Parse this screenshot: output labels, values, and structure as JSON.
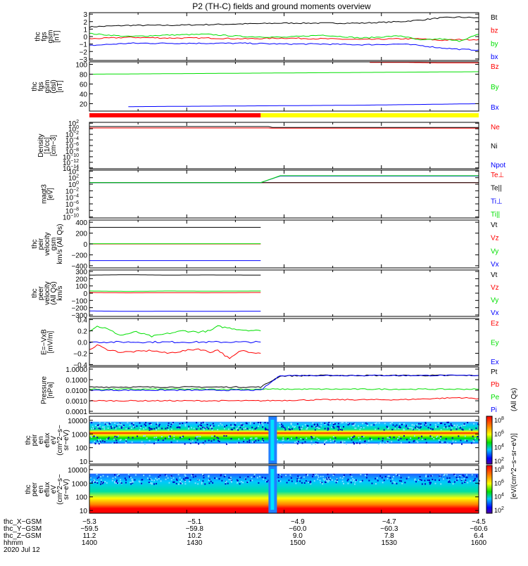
{
  "title": "P2 (TH-C) fields and ground moments overview",
  "colors": {
    "black": "#000000",
    "red": "#ff0000",
    "green": "#00e000",
    "blue": "#0000ff",
    "yellow": "#ffff00",
    "axis": "#000000"
  },
  "chart_data": [
    {
      "id": "fgs-gsm",
      "type": "line",
      "ylabel": [
        "thc",
        "fgs",
        "gsm",
        "[nT]"
      ],
      "yticks": [
        "3",
        "2",
        "1",
        "0",
        "−1",
        "−2",
        "−3"
      ],
      "ylim": [
        -3.2,
        3.2
      ],
      "series": [
        {
          "name": "Bt",
          "color": "black",
          "values": [
            1.3,
            1.5,
            1.5,
            1.6,
            1.7,
            1.8,
            1.8,
            1.8,
            2.0,
            2.2,
            2.5,
            2.6,
            2.5
          ],
          "t": [
            0,
            0.1,
            0.2,
            0.3,
            0.4,
            0.5,
            0.6,
            0.7,
            0.8,
            0.85,
            0.9,
            0.95,
            1
          ]
        },
        {
          "name": "bz",
          "color": "red",
          "values": [
            -0.3,
            -0.1,
            -0.2,
            -0.2,
            -0.3,
            -0.2,
            -0.3,
            -0.4,
            -0.3,
            -0.3,
            -0.5,
            -0.4,
            -0.4
          ],
          "t": [
            0,
            0.1,
            0.2,
            0.3,
            0.4,
            0.5,
            0.6,
            0.7,
            0.8,
            0.85,
            0.9,
            0.95,
            1
          ]
        },
        {
          "name": "by",
          "color": "green",
          "values": [
            0.4,
            0.0,
            0.2,
            0.3,
            0.0,
            -0.1,
            0.2,
            -0.2,
            0.1,
            -0.5,
            -0.3,
            -0.6,
            0.3
          ],
          "t": [
            0,
            0.1,
            0.2,
            0.3,
            0.4,
            0.5,
            0.6,
            0.7,
            0.8,
            0.85,
            0.9,
            0.95,
            1
          ]
        },
        {
          "name": "bx",
          "color": "blue",
          "values": [
            -1.2,
            -0.9,
            -0.9,
            -0.9,
            -0.9,
            -1.0,
            -1.0,
            -1.1,
            -1.0,
            -1.2,
            -1.5,
            -1.7,
            -1.8
          ],
          "t": [
            0,
            0.1,
            0.2,
            0.3,
            0.4,
            0.5,
            0.6,
            0.7,
            0.8,
            0.85,
            0.9,
            0.95,
            1
          ]
        }
      ]
    },
    {
      "id": "fgs-dsl",
      "type": "line",
      "ylabel": [
        "thc",
        "fgs",
        "gsm",
        "(dsl)",
        "[nT]"
      ],
      "yticks": [
        "100",
        "80",
        "60",
        "40",
        "20"
      ],
      "ylim": [
        5,
        105
      ],
      "series": [
        {
          "name": "Bz",
          "color": "red",
          "values": [
            104,
            104,
            103,
            103
          ],
          "t": [
            0.72,
            0.8,
            0.9,
            1
          ]
        },
        {
          "name": "By",
          "color": "green",
          "values": [
            80,
            81,
            82,
            83,
            84,
            85
          ],
          "t": [
            0,
            0.2,
            0.4,
            0.6,
            0.8,
            1
          ]
        },
        {
          "name": "Bx",
          "color": "blue",
          "values": [
            14,
            15,
            16,
            17,
            19,
            20
          ],
          "t": [
            0.1,
            0.3,
            0.5,
            0.7,
            0.9,
            1
          ]
        }
      ]
    },
    {
      "id": "density",
      "type": "line",
      "ylog": true,
      "ylabel": [
        "Density",
        "[1/cc]",
        "[cm−3]"
      ],
      "yticks_exp": [
        2,
        0,
        -2,
        -4,
        -6,
        -8,
        -10,
        -12,
        -14
      ],
      "ylim_exp": [
        -14.3,
        2.3
      ],
      "series": [
        {
          "name": "Ne",
          "color": "red",
          "values": [
            0.3,
            0.3,
            0.2,
            0.2
          ],
          "t": [
            0,
            0.46,
            0.47,
            1
          ]
        },
        {
          "name": "Ni",
          "color": "black",
          "values": [
            0.8,
            0.8,
            0.5,
            0.5
          ],
          "t": [
            0,
            0.46,
            0.47,
            1
          ]
        },
        {
          "name": "Npot",
          "color": "blue",
          "values": [],
          "t": []
        }
      ]
    },
    {
      "id": "magt3",
      "type": "line",
      "ylog": true,
      "ylabel": [
        "magt3",
        "[eV]"
      ],
      "yticks_exp": [
        4,
        2,
        0,
        -2,
        -4,
        -6,
        -8,
        -10
      ],
      "ylim_exp": [
        -10.3,
        4.3
      ],
      "series": [
        {
          "name": "Te⊥",
          "color": "red",
          "values": [
            0.5,
            0.5,
            0.5,
            0.5
          ],
          "t": [
            0,
            0.46,
            0.47,
            1
          ]
        },
        {
          "name": "Te||",
          "color": "black",
          "values": [
            0.5,
            0.5,
            0.5,
            0.5
          ],
          "t": [
            0,
            0.46,
            0.47,
            1
          ]
        },
        {
          "name": "Ti⊥",
          "color": "blue",
          "values": [
            0.5,
            0.5,
            2.5,
            2.5
          ],
          "t": [
            0,
            0.44,
            0.49,
            1
          ]
        },
        {
          "name": "Ti||",
          "color": "green",
          "values": [
            0.5,
            0.5,
            2.6,
            2.6
          ],
          "t": [
            0,
            0.44,
            0.49,
            1
          ]
        }
      ]
    },
    {
      "id": "peir-velocity",
      "type": "line",
      "ylabel": [
        "thc",
        "peir",
        "velocity",
        "gsm",
        "km/s (All Qs)"
      ],
      "yticks": [
        "400",
        "200",
        "0",
        "−200",
        "−400"
      ],
      "ylim": [
        -440,
        440
      ],
      "series": [
        {
          "name": "Vt",
          "color": "black",
          "values": [
            305,
            305
          ],
          "t": [
            0,
            0.44
          ]
        },
        {
          "name": "Vz",
          "color": "red",
          "values": [
            0,
            0
          ],
          "t": [
            0,
            0.44
          ]
        },
        {
          "name": "Vy",
          "color": "green",
          "values": [
            5,
            5
          ],
          "t": [
            0,
            0.44
          ]
        },
        {
          "name": "Vx",
          "color": "blue",
          "values": [
            -305,
            -305
          ],
          "t": [
            0,
            0.44
          ]
        }
      ]
    },
    {
      "id": "peer-velocity",
      "type": "line",
      "ylabel": [
        "thc",
        "peer",
        "velocity",
        "(All Qs)",
        "km/s"
      ],
      "yticks": [
        "300",
        "200",
        "100",
        "0",
        "−100",
        "−200",
        "−300"
      ],
      "ylim": [
        -320,
        320
      ],
      "series": [
        {
          "name": "Vt",
          "color": "black",
          "values": [
            250,
            255,
            250,
            252,
            250
          ],
          "t": [
            0,
            0.1,
            0.2,
            0.3,
            0.44
          ]
        },
        {
          "name": "Vz",
          "color": "red",
          "values": [
            10,
            5,
            8,
            6,
            10
          ],
          "t": [
            0,
            0.1,
            0.2,
            0.3,
            0.44
          ]
        },
        {
          "name": "Vy",
          "color": "green",
          "values": [
            30,
            25,
            30,
            28,
            30
          ],
          "t": [
            0,
            0.1,
            0.2,
            0.3,
            0.44
          ]
        },
        {
          "name": "Vx",
          "color": "blue",
          "values": [
            -245,
            -250,
            -248,
            -250,
            -248
          ],
          "t": [
            0,
            0.1,
            0.2,
            0.3,
            0.44
          ]
        }
      ]
    },
    {
      "id": "e-field",
      "type": "line",
      "ylabel": [
        "E=−VxB",
        "[mV/m]"
      ],
      "yticks": [
        "0.4",
        "0.2",
        "0.0",
        "−0.2",
        "−0.4"
      ],
      "ylim": [
        -0.42,
        0.42
      ],
      "series": [
        {
          "name": "Ez",
          "color": "red",
          "values": [
            -0.15,
            -0.05,
            -0.12,
            -0.18,
            -0.17,
            -0.15,
            -0.2,
            -0.16,
            -0.12,
            -0.18,
            -0.14,
            -0.3,
            -0.15,
            -0.2
          ],
          "t": [
            0,
            0.02,
            0.04,
            0.08,
            0.12,
            0.16,
            0.2,
            0.24,
            0.28,
            0.31,
            0.33,
            0.36,
            0.39,
            0.44
          ]
        },
        {
          "name": "Ey",
          "color": "green",
          "values": [
            0.2,
            0.28,
            0.25,
            0.12,
            0.18,
            0.1,
            0.15,
            0.2,
            0.18,
            0.2,
            0.28,
            0.25,
            0.22,
            0.2
          ],
          "t": [
            0,
            0.02,
            0.04,
            0.08,
            0.12,
            0.16,
            0.2,
            0.24,
            0.28,
            0.31,
            0.33,
            0.36,
            0.39,
            0.44
          ]
        },
        {
          "name": "Ex",
          "color": "blue",
          "values": [
            0.0,
            0.0,
            0.0,
            0.0
          ],
          "t": [
            0,
            0.15,
            0.3,
            0.44
          ]
        }
      ]
    },
    {
      "id": "pressure",
      "type": "line",
      "ylog": true,
      "ylabel": [
        "Pressure",
        "[nPa]"
      ],
      "yticks": [
        "1.0000",
        "0.1000",
        "0.0100",
        "0.0010",
        "0.0001"
      ],
      "yticks_exp": [
        0,
        -1,
        -2,
        -3,
        -4
      ],
      "ylim_exp": [
        -4.2,
        0.2
      ],
      "series": [
        {
          "name": "Pt",
          "color": "black",
          "values": [
            -1.7,
            -1.7,
            -1.7,
            -0.65,
            -0.6,
            -0.6
          ],
          "t": [
            0,
            0.2,
            0.44,
            0.49,
            0.6,
            1
          ]
        },
        {
          "name": "Pb",
          "color": "red",
          "values": [
            -3.0,
            -3.0,
            -3.0,
            -2.9,
            -2.9,
            -2.7,
            -2.8
          ],
          "t": [
            0,
            0.2,
            0.44,
            0.6,
            0.8,
            0.95,
            1
          ]
        },
        {
          "name": "Pe",
          "color": "green",
          "values": [
            -1.9,
            -1.9,
            -1.9,
            -1.9
          ],
          "t": [
            0,
            0.44,
            0.49,
            1
          ]
        },
        {
          "name": "Pi",
          "color": "blue",
          "values": [
            -2.0,
            -2.0,
            -2.0,
            -0.6,
            -0.6
          ],
          "t": [
            0,
            0.2,
            0.44,
            0.49,
            1
          ]
        }
      ]
    },
    {
      "id": "peir-spec",
      "type": "heatmap",
      "ylog": true,
      "ylabel": [
        "thc",
        "peir",
        "en",
        "eflux",
        "eV",
        "(cm^2−s−",
        "sr−eV)"
      ],
      "yticks": [
        "10000",
        "1000",
        "100",
        "10"
      ],
      "yticks_exp": [
        4,
        3,
        2,
        1
      ],
      "ylim_exp": [
        0.8,
        4.3
      ],
      "band_exp": [
        2.3,
        3.9
      ],
      "core_exp": 2.75
    },
    {
      "id": "peer-spec",
      "type": "heatmap",
      "ylog": true,
      "ylabel": [
        "thc",
        "peer",
        "en",
        "eflux",
        "eV",
        "(cm^2−s−",
        "sr−eV)"
      ],
      "yticks": [
        "10000",
        "1000",
        "100",
        "10"
      ],
      "yticks_exp": [
        4,
        3,
        2,
        1
      ],
      "ylim_exp": [
        0.8,
        4.3
      ],
      "band_exp": [
        0.8,
        3.7
      ],
      "core_exp": 1.4
    }
  ],
  "colorbar": {
    "ticks_exp": [
      8,
      6,
      4,
      2
    ],
    "ticks_exp2": [
      8,
      6,
      4,
      2
    ],
    "label": "[eV/(cm^2−s−sr−eV)]",
    "label2": "(All Qs)"
  },
  "xaxis": {
    "rows": [
      {
        "label": "thc_X−GSM",
        "values": [
          "−5.3",
          "−5.1",
          "−4.9",
          "−4.7",
          "−4.5"
        ]
      },
      {
        "label": "thc_Y−GSM",
        "values": [
          "−59.5",
          "−59.8",
          "−60.0",
          "−60.3",
          "−60.6"
        ]
      },
      {
        "label": "thc_Z−GSM",
        "values": [
          "11.2",
          "10.2",
          "9.0",
          "7.8",
          "6.4"
        ]
      },
      {
        "label": "hhmm",
        "values": [
          "1400",
          "1430",
          "1500",
          "1530",
          "1600"
        ]
      }
    ],
    "date": "2020 Jul 12"
  }
}
